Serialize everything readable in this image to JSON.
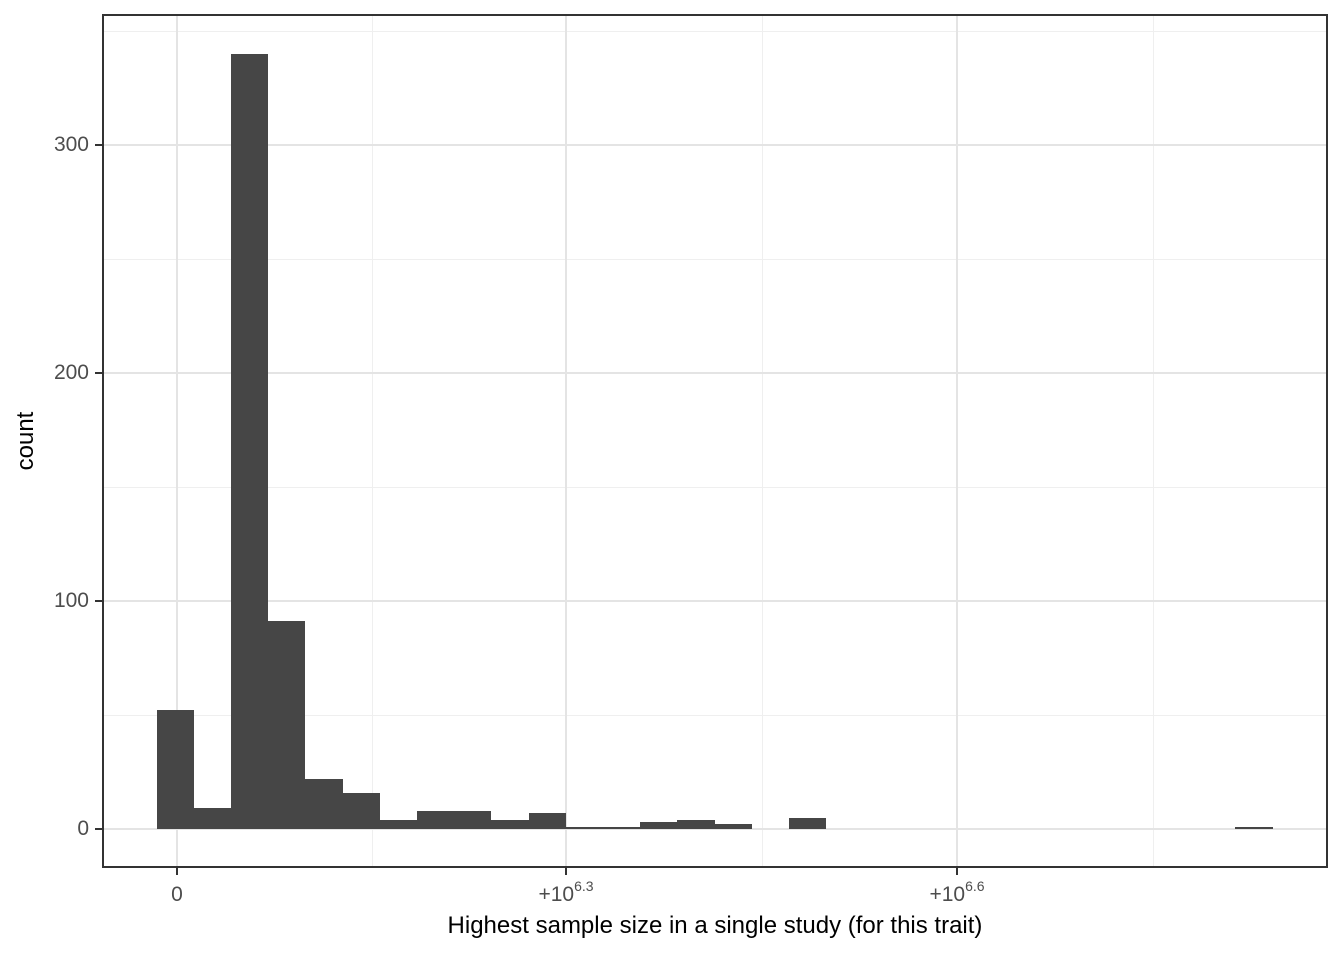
{
  "chart_data": {
    "type": "histogram",
    "title": "",
    "xlabel": "Highest sample size in a single study (for this trait)",
    "ylabel": "count",
    "x_axis": {
      "scale_note": "pseudo-log (signed log10) x scale; positions expressed in bin-index units of 30 equal-width bins",
      "range_bins": [
        -1.47,
        31.49
      ],
      "ticks": [
        {
          "base": "0",
          "sup": "",
          "pos": 0.546
        },
        {
          "base": "+10",
          "sup": "6.3",
          "pos": 11.01
        },
        {
          "base": "+10",
          "sup": "6.6",
          "pos": 21.52
        }
      ],
      "minor_gridlines": [
        5.78,
        16.27,
        26.78
      ]
    },
    "y_axis": {
      "range": [
        -17.1,
        357.4
      ],
      "ticks": [
        0,
        100,
        200,
        300
      ],
      "tick_labels": [
        "0",
        "100",
        "200",
        "300"
      ],
      "minor_gridlines": [
        50,
        150,
        250,
        350
      ]
    },
    "bins": {
      "n": 30,
      "counts": [
        52,
        9,
        340,
        91,
        22,
        16,
        4,
        8,
        8,
        4,
        7,
        1,
        1,
        3,
        4,
        2,
        0,
        5,
        0,
        0,
        0,
        0,
        0,
        0,
        0,
        0,
        0,
        0,
        0,
        1
      ]
    },
    "grid": true,
    "legend": "none",
    "colors": {
      "bar": "#464646",
      "grid_major": "#e4e4e4",
      "grid_minor": "#efefef",
      "panel_border": "#333333",
      "tick_mark": "#333333",
      "tick_label": "#4d4d4d",
      "axis_title": "#000000",
      "background": "#ffffff"
    }
  }
}
